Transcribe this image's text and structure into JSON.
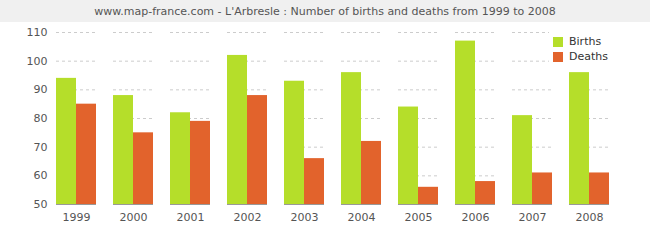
{
  "chart_data": {
    "type": "bar",
    "title": "www.map-france.com - L'Arbresle : Number of births and deaths from 1999 to 2008",
    "categories": [
      "1999",
      "2000",
      "2001",
      "2002",
      "2003",
      "2004",
      "2005",
      "2006",
      "2007",
      "2008"
    ],
    "series": [
      {
        "name": "Births",
        "color": "#b5de2a",
        "values": [
          94,
          88,
          82,
          102,
          93,
          96,
          84,
          107,
          81,
          96
        ]
      },
      {
        "name": "Deaths",
        "color": "#e2632c",
        "values": [
          85,
          75,
          79,
          88,
          66,
          72,
          56,
          58,
          61,
          61
        ]
      }
    ],
    "ylim": [
      50,
      110
    ],
    "yticks": [
      50,
      60,
      70,
      80,
      90,
      100,
      110
    ],
    "grid": true,
    "legend": "top-right"
  }
}
